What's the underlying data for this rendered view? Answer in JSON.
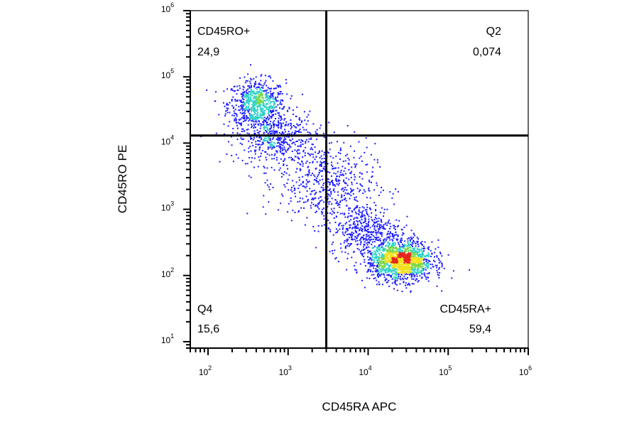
{
  "chart_data": {
    "type": "scatter",
    "xlabel": "CD45RA APC",
    "ylabel": "CD45RO PE",
    "x_scale": "log",
    "y_scale": "log",
    "xlim": [
      60,
      1000000
    ],
    "ylim": [
      8,
      1000000
    ],
    "x_ticks": [
      {
        "base": "10",
        "exp": "2",
        "value": 100
      },
      {
        "base": "10",
        "exp": "3",
        "value": 1000
      },
      {
        "base": "10",
        "exp": "4",
        "value": 10000
      },
      {
        "base": "10",
        "exp": "5",
        "value": 100000
      },
      {
        "base": "10",
        "exp": "6",
        "value": 1000000
      }
    ],
    "y_ticks": [
      {
        "base": "10",
        "exp": "1",
        "value": 10
      },
      {
        "base": "10",
        "exp": "2",
        "value": 100
      },
      {
        "base": "10",
        "exp": "3",
        "value": 1000
      },
      {
        "base": "10",
        "exp": "4",
        "value": 10000
      },
      {
        "base": "10",
        "exp": "5",
        "value": 100000
      },
      {
        "base": "10",
        "exp": "6",
        "value": 1000000
      }
    ],
    "gates": {
      "x": 3000,
      "y": 13000
    },
    "quadrants": [
      {
        "name": "CD45RO+",
        "value": "24,9",
        "position": "top-left"
      },
      {
        "name": "Q2",
        "value": "0,074",
        "position": "top-right"
      },
      {
        "name": "Q4",
        "value": "15,6",
        "position": "bottom-left"
      },
      {
        "name": "CD45RA+",
        "value": "59,4",
        "position": "bottom-right"
      }
    ],
    "populations": [
      {
        "x": 400,
        "y": 40000,
        "spread_x": 0.18,
        "spread_y": 0.18,
        "n": 700
      },
      {
        "x": 700,
        "y": 12000,
        "spread_x": 0.25,
        "spread_y": 0.2,
        "n": 500
      },
      {
        "x": 3000,
        "y": 2500,
        "spread_x": 0.3,
        "spread_y": 0.3,
        "n": 500
      },
      {
        "x": 9000,
        "y": 500,
        "spread_x": 0.22,
        "spread_y": 0.2,
        "n": 450
      },
      {
        "x": 25000,
        "y": 170,
        "spread_x": 0.2,
        "spread_y": 0.15,
        "n": 1500
      }
    ],
    "colors": {
      "low": "#1c1cff",
      "mid": "#2fd2c8",
      "mid2": "#7cd84a",
      "high": "#f2e21c",
      "peak": "#e5251b"
    },
    "grid": false,
    "legend": "none"
  }
}
